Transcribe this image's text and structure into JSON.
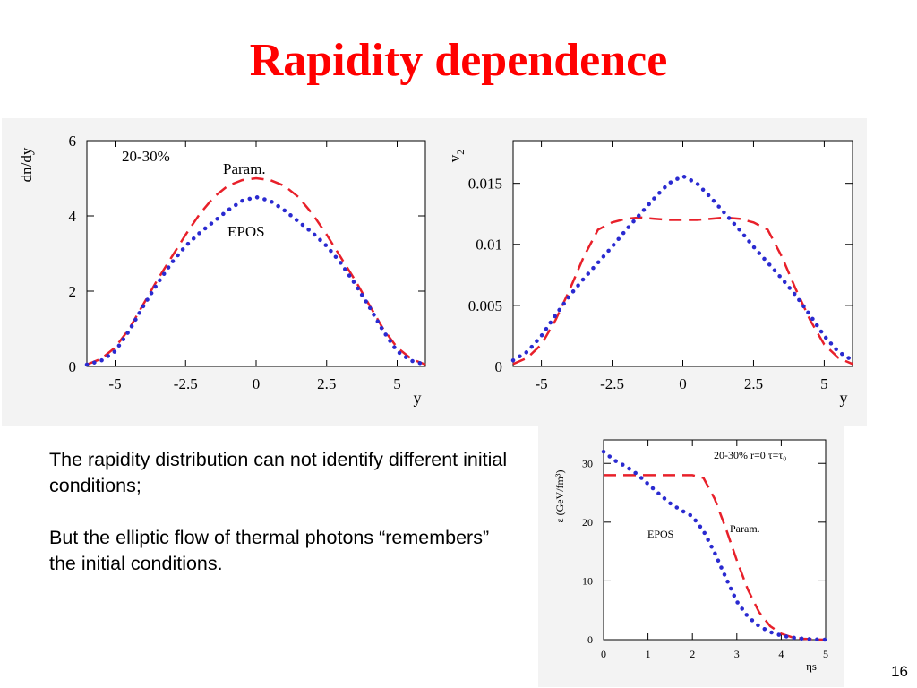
{
  "slide": {
    "title": "Rapidity dependence",
    "paragraphs": [
      "The rapidity distribution can not identify different initial conditions;",
      "But the elliptic flow of thermal photons “remembers” the initial conditions."
    ],
    "page_number": "16"
  },
  "colors": {
    "title": "#ff0000",
    "param": "#e8202a",
    "epos": "#2a2ad0"
  },
  "chart_data": [
    {
      "type": "line",
      "ylabel": "dn/dy",
      "xlabel": "y",
      "xlim": [
        -6,
        6
      ],
      "ylim": [
        0,
        6
      ],
      "xticks": [
        -5,
        -2.5,
        0,
        2.5,
        5
      ],
      "xtick_labels": [
        "-5",
        "-2.5",
        "0",
        "2.5",
        "5"
      ],
      "yticks": [
        0,
        2,
        4,
        6
      ],
      "ytick_labels": [
        "0",
        "2",
        "4",
        "6"
      ],
      "annotations": [
        "20-30%",
        "Param.",
        "EPOS"
      ],
      "series": [
        {
          "name": "Param.",
          "style": "dashed",
          "x": [
            -6,
            -5.5,
            -5,
            -4.5,
            -4,
            -3.5,
            -3,
            -2.5,
            -2,
            -1.5,
            -1,
            -0.5,
            0,
            0.5,
            1,
            1.5,
            2,
            2.5,
            3,
            3.5,
            4,
            4.5,
            5,
            5.5,
            6
          ],
          "y": [
            0.05,
            0.2,
            0.5,
            1.0,
            1.65,
            2.3,
            2.9,
            3.5,
            4.05,
            4.5,
            4.8,
            4.95,
            5.0,
            4.95,
            4.8,
            4.5,
            4.05,
            3.5,
            2.9,
            2.3,
            1.65,
            1.0,
            0.5,
            0.2,
            0.05
          ]
        },
        {
          "name": "EPOS",
          "style": "dotted",
          "x": [
            -6,
            -5.5,
            -5,
            -4.5,
            -4,
            -3.5,
            -3,
            -2.5,
            -2,
            -1.5,
            -1,
            -0.5,
            0,
            0.5,
            1,
            1.5,
            2,
            2.5,
            3,
            3.5,
            4,
            4.5,
            5,
            5.5,
            6
          ],
          "y": [
            0.05,
            0.15,
            0.4,
            0.95,
            1.6,
            2.2,
            2.75,
            3.2,
            3.55,
            3.85,
            4.15,
            4.4,
            4.5,
            4.4,
            4.15,
            3.85,
            3.55,
            3.2,
            2.75,
            2.2,
            1.6,
            0.95,
            0.4,
            0.15,
            0.05
          ]
        }
      ]
    },
    {
      "type": "line",
      "ylabel": "v",
      "ylabel_sub": "2",
      "xlabel": "y",
      "xlim": [
        -6,
        6
      ],
      "ylim": [
        0,
        0.0185
      ],
      "xticks": [
        -5,
        -2.5,
        0,
        2.5,
        5
      ],
      "xtick_labels": [
        "-5",
        "-2.5",
        "0",
        "2.5",
        "5"
      ],
      "yticks": [
        0,
        0.005,
        0.01,
        0.015
      ],
      "ytick_labels": [
        "0",
        "0.005",
        "0.01",
        "0.015"
      ],
      "series": [
        {
          "name": "Param.",
          "style": "dashed",
          "x": [
            -6,
            -5.5,
            -5,
            -4.5,
            -4,
            -3.5,
            -3,
            -2.5,
            -2,
            -1.5,
            -1,
            -0.5,
            0,
            0.5,
            1,
            1.5,
            2,
            2.5,
            3,
            3.5,
            4,
            4.5,
            5,
            5.5,
            6
          ],
          "y": [
            0.0002,
            0.0007,
            0.0018,
            0.0038,
            0.0063,
            0.009,
            0.0112,
            0.0118,
            0.0121,
            0.0122,
            0.0121,
            0.012,
            0.012,
            0.012,
            0.0121,
            0.0122,
            0.0121,
            0.0118,
            0.0112,
            0.009,
            0.0063,
            0.0038,
            0.0018,
            0.0007,
            0.0002
          ]
        },
        {
          "name": "EPOS",
          "style": "dotted",
          "x": [
            -6,
            -5.5,
            -5,
            -4.5,
            -4,
            -3.5,
            -3,
            -2.5,
            -2,
            -1.5,
            -1,
            -0.5,
            0,
            0.5,
            1,
            1.5,
            2,
            2.5,
            3,
            3.5,
            4,
            4.5,
            5,
            5.5,
            6
          ],
          "y": [
            0.0005,
            0.0012,
            0.0025,
            0.0042,
            0.0058,
            0.0072,
            0.0085,
            0.0098,
            0.0112,
            0.0125,
            0.0138,
            0.015,
            0.0156,
            0.015,
            0.0138,
            0.0125,
            0.0112,
            0.0098,
            0.0085,
            0.0072,
            0.0058,
            0.0042,
            0.0025,
            0.0012,
            0.0005
          ]
        }
      ]
    },
    {
      "type": "line",
      "ylabel": "ε (GeV/fm³)",
      "xlabel": "ηs",
      "xlim": [
        0,
        5
      ],
      "ylim": [
        0,
        34
      ],
      "xticks": [
        0,
        1,
        2,
        3,
        4,
        5
      ],
      "xtick_labels": [
        "0",
        "1",
        "2",
        "3",
        "4",
        "5"
      ],
      "yticks": [
        0,
        10,
        20,
        30
      ],
      "ytick_labels": [
        "0",
        "10",
        "20",
        "30"
      ],
      "annotations": [
        "20-30%   r=0  τ=τ₀",
        "EPOS",
        "Param."
      ],
      "series": [
        {
          "name": "Param.",
          "style": "dashed",
          "x": [
            0,
            0.5,
            1,
            1.5,
            2,
            2.25,
            2.5,
            2.75,
            3,
            3.25,
            3.5,
            3.75,
            4,
            4.25,
            4.5,
            4.75,
            5
          ],
          "y": [
            28,
            28,
            28,
            28,
            28,
            27.5,
            24,
            19,
            13.5,
            8.5,
            4.7,
            2.3,
            1.0,
            0.4,
            0.15,
            0.05,
            0
          ]
        },
        {
          "name": "EPOS",
          "style": "dotted",
          "x": [
            0,
            0.25,
            0.5,
            0.75,
            1,
            1.25,
            1.5,
            1.75,
            2,
            2.25,
            2.5,
            2.75,
            3,
            3.25,
            3.5,
            3.75,
            4,
            4.25,
            4.5,
            4.75,
            5
          ],
          "y": [
            32,
            30.5,
            29.5,
            28.2,
            26.5,
            24.8,
            23.2,
            22.0,
            21.0,
            18.5,
            14.8,
            10.6,
            6.5,
            3.9,
            2.3,
            1.3,
            0.7,
            0.35,
            0.15,
            0.05,
            0
          ]
        }
      ]
    }
  ]
}
